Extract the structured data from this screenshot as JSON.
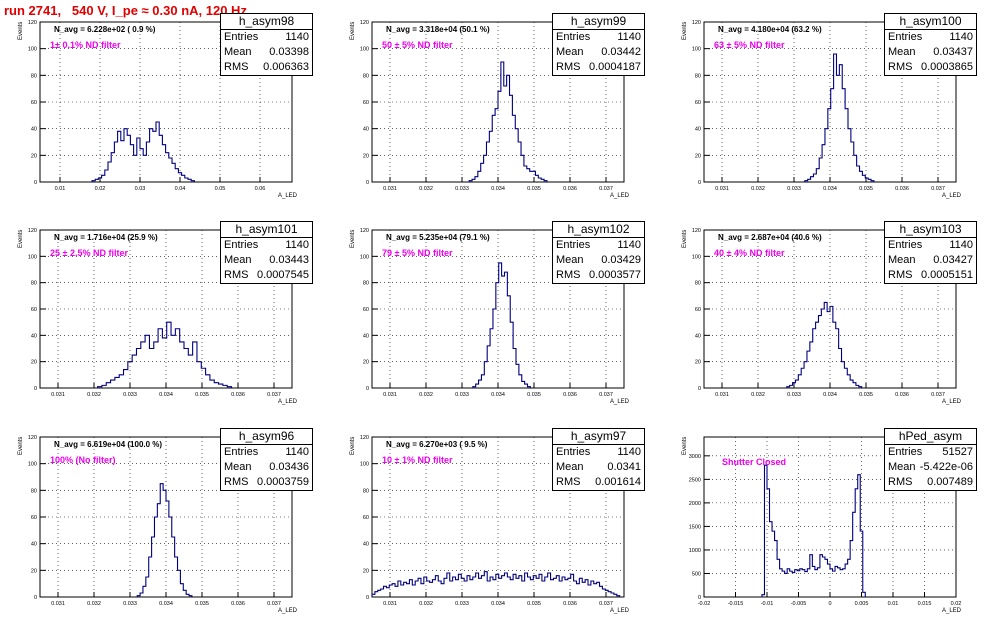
{
  "title": "run 2741,   540 V, I_pe ≈ 0.30 nA, 120 Hz",
  "colors": {
    "title": "#e00000",
    "hist": "#00007f",
    "annotation": "#ee00ee",
    "grid": "#000000"
  },
  "chart_data": [
    {
      "type": "histogram",
      "name": "h_asym98",
      "stats": {
        "entries": "1140",
        "mean": "0.03398",
        "rms": "0.006363"
      },
      "navg": "N_avg = 6.228e+02 ( 0.9 %)",
      "filter": "1± 0.1% ND filter",
      "xlabel": "A_LED",
      "ylabel": "Events",
      "xlim": [
        0.005,
        0.068
      ],
      "ylim": [
        0,
        120
      ],
      "xticks": [
        0.01,
        0.02,
        0.03,
        0.04,
        0.05,
        0.06
      ],
      "yticks": [
        0,
        20,
        40,
        60,
        80,
        100,
        120
      ],
      "x_ticklabels": [
        "0.01",
        "0.02",
        "0.03",
        "0.04",
        "0.05",
        "0.06"
      ],
      "y_ticklabels": [
        "0",
        "20",
        "40",
        "60",
        "80",
        "100",
        "120"
      ],
      "bin_start": 0.018,
      "bin_width": 0.0008,
      "counts": [
        1,
        2,
        3,
        5,
        9,
        15,
        22,
        30,
        38,
        31,
        40,
        35,
        28,
        20,
        33,
        25,
        20,
        30,
        40,
        38,
        45,
        35,
        28,
        22,
        18,
        14,
        10,
        7,
        5,
        3,
        2,
        1
      ],
      "grid": true
    },
    {
      "type": "histogram",
      "name": "h_asym99",
      "stats": {
        "entries": "1140",
        "mean": "0.03442",
        "rms": "0.0004187"
      },
      "navg": "N_avg = 3.318e+04 (50.1 %)",
      "filter": "50 ± 5% ND filter",
      "xlabel": "A_LED",
      "ylabel": "Events",
      "xlim": [
        0.0305,
        0.0375
      ],
      "ylim": [
        0,
        120
      ],
      "xticks": [
        0.031,
        0.032,
        0.033,
        0.034,
        0.035,
        0.036,
        0.037
      ],
      "yticks": [
        0,
        20,
        40,
        60,
        80,
        100,
        120
      ],
      "x_ticklabels": [
        "0.031",
        "0.032",
        "0.033",
        "0.034",
        "0.035",
        "0.036",
        "0.037"
      ],
      "y_ticklabels": [
        "0",
        "20",
        "40",
        "60",
        "80",
        "100",
        "120"
      ],
      "bin_start": 0.0332,
      "bin_width": 8e-05,
      "counts": [
        1,
        2,
        4,
        8,
        14,
        20,
        30,
        38,
        50,
        55,
        68,
        90,
        72,
        80,
        65,
        50,
        40,
        30,
        20,
        12,
        10,
        8,
        8,
        5,
        3,
        2,
        1
      ],
      "grid": true
    },
    {
      "type": "histogram",
      "name": "h_asym100",
      "stats": {
        "entries": "1140",
        "mean": "0.03437",
        "rms": "0.0003865"
      },
      "navg": "N_avg = 4.180e+04 (63.2 %)",
      "filter": "63 ± 5% ND filter",
      "xlabel": "A_LED",
      "ylabel": "Events",
      "xlim": [
        0.0305,
        0.0375
      ],
      "ylim": [
        0,
        120
      ],
      "xticks": [
        0.031,
        0.032,
        0.033,
        0.034,
        0.035,
        0.036,
        0.037
      ],
      "yticks": [
        0,
        20,
        40,
        60,
        80,
        100,
        120
      ],
      "x_ticklabels": [
        "0.031",
        "0.032",
        "0.033",
        "0.034",
        "0.035",
        "0.036",
        "0.037"
      ],
      "y_ticklabels": [
        "0",
        "20",
        "40",
        "60",
        "80",
        "100",
        "120"
      ],
      "bin_start": 0.0333,
      "bin_width": 8e-05,
      "counts": [
        1,
        2,
        4,
        6,
        10,
        18,
        28,
        40,
        55,
        70,
        96,
        80,
        88,
        70,
        55,
        40,
        30,
        20,
        12,
        8,
        5,
        3,
        2,
        1
      ],
      "grid": true
    },
    {
      "type": "histogram",
      "name": "h_asym101",
      "stats": {
        "entries": "1140",
        "mean": "0.03443",
        "rms": "0.0007545"
      },
      "navg": "N_avg = 1.716e+04 (25.9 %)",
      "filter": "25 ± 2.5% ND filter",
      "xlabel": "A_LED",
      "ylabel": "Events",
      "xlim": [
        0.0305,
        0.0375
      ],
      "ylim": [
        0,
        120
      ],
      "xticks": [
        0.031,
        0.032,
        0.033,
        0.034,
        0.035,
        0.036,
        0.037
      ],
      "yticks": [
        0,
        20,
        40,
        60,
        80,
        100,
        120
      ],
      "x_ticklabels": [
        "0.031",
        "0.032",
        "0.033",
        "0.034",
        "0.035",
        "0.036",
        "0.037"
      ],
      "y_ticklabels": [
        "0",
        "20",
        "40",
        "60",
        "80",
        "100",
        "120"
      ],
      "bin_start": 0.0321,
      "bin_width": 0.00012,
      "counts": [
        1,
        2,
        4,
        6,
        8,
        10,
        14,
        20,
        25,
        30,
        35,
        40,
        30,
        35,
        45,
        38,
        50,
        40,
        45,
        35,
        30,
        25,
        35,
        20,
        15,
        10,
        6,
        4,
        3,
        2,
        1
      ],
      "grid": true
    },
    {
      "type": "histogram",
      "name": "h_asym102",
      "stats": {
        "entries": "1140",
        "mean": "0.03429",
        "rms": "0.0003577"
      },
      "navg": "N_avg = 5.235e+04 (79.1 %)",
      "filter": "79 ± 5% ND filter",
      "xlabel": "A_LED",
      "ylabel": "Events",
      "xlim": [
        0.0305,
        0.0375
      ],
      "ylim": [
        0,
        120
      ],
      "xticks": [
        0.031,
        0.032,
        0.033,
        0.034,
        0.035,
        0.036,
        0.037
      ],
      "yticks": [
        0,
        20,
        40,
        60,
        80,
        100,
        120
      ],
      "x_ticklabels": [
        "0.031",
        "0.032",
        "0.033",
        "0.034",
        "0.035",
        "0.036",
        "0.037"
      ],
      "y_ticklabels": [
        "0",
        "20",
        "40",
        "60",
        "80",
        "100",
        "120"
      ],
      "bin_start": 0.0333,
      "bin_width": 8e-05,
      "counts": [
        1,
        3,
        6,
        10,
        20,
        32,
        45,
        60,
        80,
        95,
        85,
        88,
        70,
        50,
        30,
        18,
        10,
        5,
        3,
        1
      ],
      "grid": true
    },
    {
      "type": "histogram",
      "name": "h_asym103",
      "stats": {
        "entries": "1140",
        "mean": "0.03427",
        "rms": "0.0005151"
      },
      "navg": "N_avg = 2.687e+04 (40.6 %)",
      "filter": "40 ± 4% ND filter",
      "xlabel": "A_LED",
      "ylabel": "Events",
      "xlim": [
        0.0305,
        0.0375
      ],
      "ylim": [
        0,
        120
      ],
      "xticks": [
        0.031,
        0.032,
        0.033,
        0.034,
        0.035,
        0.036,
        0.037
      ],
      "yticks": [
        0,
        20,
        40,
        60,
        80,
        100,
        120
      ],
      "x_ticklabels": [
        "0.031",
        "0.032",
        "0.033",
        "0.034",
        "0.035",
        "0.036",
        "0.037"
      ],
      "y_ticklabels": [
        "0",
        "20",
        "40",
        "60",
        "80",
        "100",
        "120"
      ],
      "bin_start": 0.0328,
      "bin_width": 8e-05,
      "counts": [
        1,
        2,
        4,
        6,
        10,
        15,
        20,
        28,
        35,
        45,
        50,
        55,
        60,
        65,
        58,
        62,
        50,
        45,
        30,
        20,
        15,
        10,
        6,
        4,
        2,
        1
      ],
      "grid": true
    },
    {
      "type": "histogram",
      "name": "h_asym96",
      "stats": {
        "entries": "1140",
        "mean": "0.03436",
        "rms": "0.0003759"
      },
      "navg": "N_avg = 6.619e+04 (100.0 %)",
      "filter": "100% (No filter)",
      "xlabel": "A_LED",
      "ylabel": "Events",
      "xlim": [
        0.0305,
        0.0375
      ],
      "ylim": [
        0,
        120
      ],
      "xticks": [
        0.031,
        0.032,
        0.033,
        0.034,
        0.035,
        0.036,
        0.037
      ],
      "yticks": [
        0,
        20,
        40,
        60,
        80,
        100,
        120
      ],
      "x_ticklabels": [
        "0.031",
        "0.032",
        "0.033",
        "0.034",
        "0.035",
        "0.036",
        "0.037"
      ],
      "y_ticklabels": [
        "0",
        "20",
        "40",
        "60",
        "80",
        "100",
        "120"
      ],
      "bin_start": 0.0332,
      "bin_width": 8e-05,
      "counts": [
        1,
        3,
        8,
        15,
        30,
        45,
        60,
        70,
        85,
        80,
        72,
        60,
        45,
        30,
        20,
        10,
        5,
        2,
        1
      ],
      "grid": true
    },
    {
      "type": "histogram",
      "name": "h_asym97",
      "stats": {
        "entries": "1140",
        "mean": "0.0341",
        "rms": "0.001614"
      },
      "navg": "N_avg = 6.270e+03 ( 9.5 %)",
      "filter": "10 ± 1% ND filter",
      "xlabel": "A_LED",
      "ylabel": "Events",
      "xlim": [
        0.0305,
        0.0375
      ],
      "ylim": [
        0,
        120
      ],
      "xticks": [
        0.031,
        0.032,
        0.033,
        0.034,
        0.035,
        0.036,
        0.037
      ],
      "yticks": [
        0,
        20,
        40,
        60,
        80,
        100,
        120
      ],
      "x_ticklabels": [
        "0.031",
        "0.032",
        "0.033",
        "0.034",
        "0.035",
        "0.036",
        "0.037"
      ],
      "y_ticklabels": [
        "0",
        "20",
        "40",
        "60",
        "80",
        "100",
        "120"
      ],
      "bin_start": 0.0305,
      "bin_width": 8e-05,
      "counts": [
        2,
        4,
        5,
        6,
        8,
        7,
        9,
        10,
        8,
        12,
        9,
        11,
        10,
        13,
        9,
        12,
        14,
        10,
        15,
        12,
        11,
        13,
        16,
        12,
        10,
        14,
        18,
        12,
        15,
        13,
        17,
        14,
        12,
        16,
        13,
        15,
        18,
        14,
        16,
        19,
        12,
        15,
        13,
        17,
        14,
        16,
        18,
        15,
        13,
        17,
        14,
        16,
        12,
        18,
        15,
        13,
        16,
        14,
        17,
        12,
        15,
        18,
        13,
        14,
        16,
        12,
        15,
        13,
        14,
        17,
        12,
        10,
        14,
        11,
        13,
        9,
        12,
        10,
        11,
        8,
        6,
        5,
        4,
        3,
        2,
        1
      ],
      "grid": true
    },
    {
      "type": "histogram",
      "name": "hPed_asym",
      "stats": {
        "entries": "51527",
        "mean": "-5.422e-06",
        "rms": "0.007489"
      },
      "navg": "",
      "filter": "Shutter Closed",
      "xlabel": "A_LED",
      "ylabel": "Events",
      "xlim": [
        -0.02,
        0.02
      ],
      "ylim": [
        0,
        3400
      ],
      "xticks": [
        -0.02,
        -0.015,
        -0.01,
        -0.005,
        0,
        0.005,
        0.01,
        0.015,
        0.02
      ],
      "yticks": [
        0,
        500,
        1000,
        1500,
        2000,
        2500,
        3000
      ],
      "x_ticklabels": [
        "-0.02",
        "-0.015",
        "-0.01",
        "-0.005",
        "0",
        "0.005",
        "0.01",
        "0.015",
        "0.02"
      ],
      "y_ticklabels": [
        "0",
        "500",
        "1000",
        "1500",
        "2000",
        "2500",
        "3000"
      ],
      "bin_start": -0.0108,
      "bin_width": 0.0004,
      "counts": [
        50,
        2800,
        2300,
        1600,
        1400,
        1200,
        800,
        600,
        550,
        500,
        600,
        550,
        520,
        580,
        560,
        600,
        580,
        540,
        600,
        900,
        650,
        580,
        620,
        900,
        850,
        800,
        700,
        600,
        550,
        650,
        620,
        580,
        600,
        700,
        800,
        1200,
        1800,
        2300,
        2600,
        1400,
        100
      ],
      "grid": true
    }
  ]
}
